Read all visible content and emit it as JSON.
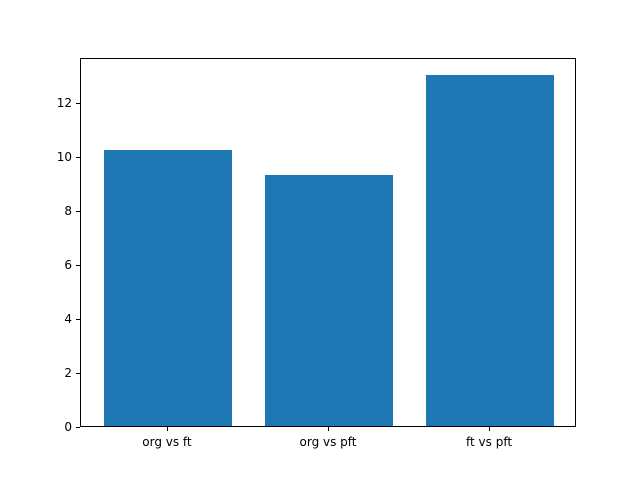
{
  "chart_data": {
    "type": "bar",
    "categories": [
      "org vs ft",
      "org vs pft",
      "ft vs pft"
    ],
    "values": [
      10.2,
      9.3,
      13.0
    ],
    "title": "",
    "xlabel": "",
    "ylabel": "",
    "ylim": [
      0,
      13.65
    ],
    "yticks": [
      0,
      2,
      4,
      6,
      8,
      10,
      12
    ],
    "bar_color": "#1f77b4",
    "background_color": "#ffffff",
    "grid": false,
    "legend": null
  }
}
